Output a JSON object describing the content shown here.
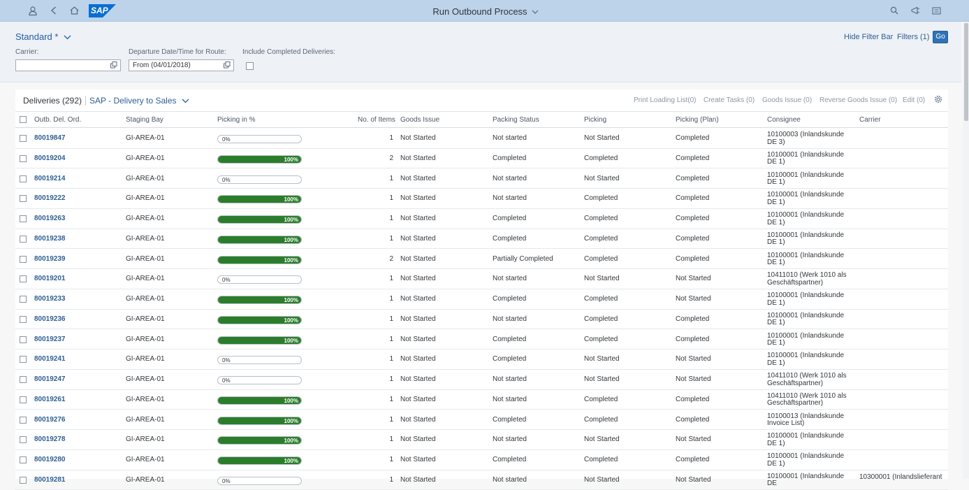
{
  "shell": {
    "title": "Run Outbound Process",
    "logo_text": "SAP",
    "icons": [
      "user-icon",
      "back-icon",
      "home-icon",
      "search-icon",
      "notification-icon",
      "menu-icon"
    ]
  },
  "filterbar": {
    "variant": "Standard *",
    "hide_filter_bar": "Hide Filter Bar",
    "filters": "Filters (1)",
    "go": "Go",
    "carrier_label": "Carrier:",
    "carrier_value": "",
    "departure_label": "Departure Date/Time for Route:",
    "departure_value": "From (04/01/2018)",
    "completed_label": "Include Completed Deliveries:",
    "completed_checked": false
  },
  "table": {
    "title": "Deliveries (292)",
    "variant": "SAP - Delivery to Sales",
    "actions": {
      "print": "Print Loading List(0)",
      "create_tasks": "Create Tasks (0)",
      "goods_issue": "Goods Issue (0)",
      "reverse": "Reverse Goods Issue (0)",
      "edit": "Edit (0)"
    },
    "columns": [
      "Outb. Del. Ord.",
      "Staging Bay",
      "Picking in %",
      "No. of Items",
      "Goods Issue",
      "Packing Status",
      "Picking",
      "Picking (Plan)",
      "Consignee",
      "Carrier"
    ],
    "rows": [
      {
        "id": "80019847",
        "bay": "GI-AREA-01",
        "pick": 0,
        "pick_text": "0%",
        "items": "1",
        "gi": "Not Started",
        "pack": "Not started",
        "picking": "Not Started",
        "plan": "Completed",
        "consignee": "10100003 (Inlandskunde DE 3)",
        "carrier": ""
      },
      {
        "id": "80019204",
        "bay": "GI-AREA-01",
        "pick": 100,
        "pick_text": "100%",
        "items": "2",
        "gi": "Not Started",
        "pack": "Completed",
        "picking": "Completed",
        "plan": "Completed",
        "consignee": "10100001 (Inlandskunde DE 1)",
        "carrier": ""
      },
      {
        "id": "80019214",
        "bay": "GI-AREA-01",
        "pick": 0,
        "pick_text": "0%",
        "items": "1",
        "gi": "Not Started",
        "pack": "Not started",
        "picking": "Not Started",
        "plan": "Completed",
        "consignee": "10100001 (Inlandskunde DE 1)",
        "carrier": ""
      },
      {
        "id": "80019222",
        "bay": "GI-AREA-01",
        "pick": 100,
        "pick_text": "100%",
        "items": "1",
        "gi": "Not Started",
        "pack": "Not started",
        "picking": "Completed",
        "plan": "Completed",
        "consignee": "10100001 (Inlandskunde DE 1)",
        "carrier": ""
      },
      {
        "id": "80019263",
        "bay": "GI-AREA-01",
        "pick": 100,
        "pick_text": "100%",
        "items": "1",
        "gi": "Not Started",
        "pack": "Completed",
        "picking": "Completed",
        "plan": "Completed",
        "consignee": "10100001 (Inlandskunde DE 1)",
        "carrier": ""
      },
      {
        "id": "80019238",
        "bay": "GI-AREA-01",
        "pick": 100,
        "pick_text": "100%",
        "items": "1",
        "gi": "Not Started",
        "pack": "Completed",
        "picking": "Completed",
        "plan": "Completed",
        "consignee": "10100001 (Inlandskunde DE 1)",
        "carrier": ""
      },
      {
        "id": "80019239",
        "bay": "GI-AREA-01",
        "pick": 100,
        "pick_text": "100%",
        "items": "2",
        "gi": "Not Started",
        "pack": "Partially Completed",
        "picking": "Completed",
        "plan": "Completed",
        "consignee": "10100001 (Inlandskunde DE 1)",
        "carrier": ""
      },
      {
        "id": "80019201",
        "bay": "GI-AREA-01",
        "pick": 0,
        "pick_text": "0%",
        "items": "1",
        "gi": "Not Started",
        "pack": "Not started",
        "picking": "Not Started",
        "plan": "Not Started",
        "consignee": "10411010 (Werk 1010 als Geschäftspartner)",
        "carrier": ""
      },
      {
        "id": "80019233",
        "bay": "GI-AREA-01",
        "pick": 100,
        "pick_text": "100%",
        "items": "1",
        "gi": "Not Started",
        "pack": "Completed",
        "picking": "Completed",
        "plan": "Not Started",
        "consignee": "10100001 (Inlandskunde DE 1)",
        "carrier": ""
      },
      {
        "id": "80019236",
        "bay": "GI-AREA-01",
        "pick": 100,
        "pick_text": "100%",
        "items": "1",
        "gi": "Not Started",
        "pack": "Not started",
        "picking": "Completed",
        "plan": "Completed",
        "consignee": "10100001 (Inlandskunde DE 1)",
        "carrier": ""
      },
      {
        "id": "80019237",
        "bay": "GI-AREA-01",
        "pick": 100,
        "pick_text": "100%",
        "items": "1",
        "gi": "Not Started",
        "pack": "Completed",
        "picking": "Completed",
        "plan": "Completed",
        "consignee": "10100001 (Inlandskunde DE 1)",
        "carrier": ""
      },
      {
        "id": "80019241",
        "bay": "GI-AREA-01",
        "pick": 0,
        "pick_text": "0%",
        "items": "1",
        "gi": "Not Started",
        "pack": "Completed",
        "picking": "Not Started",
        "plan": "Not Started",
        "consignee": "10100001 (Inlandskunde DE 1)",
        "carrier": ""
      },
      {
        "id": "80019247",
        "bay": "GI-AREA-01",
        "pick": 0,
        "pick_text": "0%",
        "items": "1",
        "gi": "Not Started",
        "pack": "Not started",
        "picking": "Not Started",
        "plan": "Not Started",
        "consignee": "10411010 (Werk 1010 als Geschäftspartner)",
        "carrier": ""
      },
      {
        "id": "80019261",
        "bay": "GI-AREA-01",
        "pick": 100,
        "pick_text": "100%",
        "items": "1",
        "gi": "Not Started",
        "pack": "Not started",
        "picking": "Completed",
        "plan": "Completed",
        "consignee": "10411010 (Werk 1010 als Geschäftspartner)",
        "carrier": ""
      },
      {
        "id": "80019276",
        "bay": "GI-AREA-01",
        "pick": 100,
        "pick_text": "100%",
        "items": "1",
        "gi": "Not Started",
        "pack": "Completed",
        "picking": "Completed",
        "plan": "Completed",
        "consignee": "10100013 (Inlandskunde Invoice List)",
        "carrier": ""
      },
      {
        "id": "80019278",
        "bay": "GI-AREA-01",
        "pick": 100,
        "pick_text": "100%",
        "items": "1",
        "gi": "Not Started",
        "pack": "Not started",
        "picking": "Not Started",
        "plan": "Not Started",
        "consignee": "10100001 (Inlandskunde DE 1)",
        "carrier": ""
      },
      {
        "id": "80019280",
        "bay": "GI-AREA-01",
        "pick": 100,
        "pick_text": "100%",
        "items": "1",
        "gi": "Not Started",
        "pack": "Completed",
        "picking": "Completed",
        "plan": "Completed",
        "consignee": "10100001 (Inlandskunde DE 1)",
        "carrier": ""
      },
      {
        "id": "80019281",
        "bay": "GI-AREA-01",
        "pick": 0,
        "pick_text": "0%",
        "items": "1",
        "gi": "Not Started",
        "pack": "Not started",
        "picking": "Not Started",
        "plan": "Not Started",
        "consignee": "10100001 (Inlandskunde DE",
        "carrier": "10300001 (Inlandslieferant"
      }
    ]
  }
}
